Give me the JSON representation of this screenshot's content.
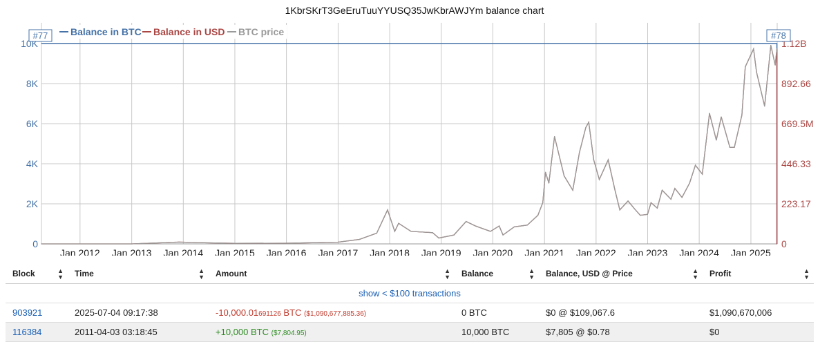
{
  "chart_data": {
    "type": "line",
    "title": "1KbrSKrT3GeEruTuuYYUSQ35JwKbrAWJYm balance chart",
    "legend": [
      "Balance in BTC",
      "Balance in USD",
      "BTC price"
    ],
    "legend_placement": "top-left",
    "grid": true,
    "x_ticks": [
      "Jan 2012",
      "Jan 2013",
      "Jan 2014",
      "Jan 2015",
      "Jan 2016",
      "Jan 2017",
      "Jan 2018",
      "Jan 2019",
      "Jan 2020",
      "Jan 2021",
      "Jan 2022",
      "Jan 2023",
      "Jan 2024",
      "Jan 2025"
    ],
    "y_left_ticks": [
      "0",
      "2K",
      "4K",
      "6K",
      "8K",
      "10K"
    ],
    "y_right_ticks": [
      "0",
      "223.17",
      "446.33",
      "669.5M",
      "892.66",
      "1.12B"
    ],
    "y_left_range": [
      0,
      10000
    ],
    "y_right_range_usd_millions": [
      0,
      1120
    ],
    "flags": [
      "#77",
      "#78"
    ],
    "series": [
      {
        "name": "Balance in BTC",
        "color": "#4572a7",
        "points": [
          [
            "2011-04-03",
            10000
          ],
          [
            "2025-07-04",
            10000
          ],
          [
            "2025-07-04",
            0
          ]
        ]
      },
      {
        "name": "Balance in USD",
        "color": "#aa4643",
        "unit": "USD millions",
        "points": [
          [
            "2011-04-03",
            0.008
          ],
          [
            "2013-01-01",
            0.13
          ],
          [
            "2013-12-01",
            10
          ],
          [
            "2014-06-01",
            6
          ],
          [
            "2015-01-01",
            3
          ],
          [
            "2016-01-01",
            4
          ],
          [
            "2016-07-01",
            6.5
          ],
          [
            "2017-01-01",
            9.5
          ],
          [
            "2017-06-01",
            25
          ],
          [
            "2017-10-01",
            60
          ],
          [
            "2017-12-17",
            190
          ],
          [
            "2018-02-06",
            70
          ],
          [
            "2018-03-05",
            115
          ],
          [
            "2018-06-01",
            70
          ],
          [
            "2018-11-01",
            63
          ],
          [
            "2018-12-15",
            33
          ],
          [
            "2019-04-01",
            50
          ],
          [
            "2019-06-26",
            125
          ],
          [
            "2019-09-01",
            100
          ],
          [
            "2019-12-15",
            70
          ],
          [
            "2020-02-15",
            100
          ],
          [
            "2020-03-13",
            50
          ],
          [
            "2020-06-01",
            95
          ],
          [
            "2020-09-01",
            105
          ],
          [
            "2020-11-15",
            160
          ],
          [
            "2020-12-20",
            230
          ],
          [
            "2021-01-08",
            400
          ],
          [
            "2021-02-01",
            340
          ],
          [
            "2021-03-13",
            600
          ],
          [
            "2021-05-20",
            380
          ],
          [
            "2021-07-20",
            300
          ],
          [
            "2021-09-05",
            510
          ],
          [
            "2021-10-20",
            650
          ],
          [
            "2021-11-10",
            680
          ],
          [
            "2021-12-15",
            470
          ],
          [
            "2022-01-24",
            360
          ],
          [
            "2022-03-28",
            470
          ],
          [
            "2022-05-15",
            300
          ],
          [
            "2022-06-18",
            190
          ],
          [
            "2022-08-15",
            240
          ],
          [
            "2022-10-01",
            195
          ],
          [
            "2022-11-10",
            160
          ],
          [
            "2022-12-31",
            165
          ],
          [
            "2023-01-25",
            230
          ],
          [
            "2023-03-10",
            200
          ],
          [
            "2023-04-14",
            300
          ],
          [
            "2023-06-15",
            250
          ],
          [
            "2023-07-13",
            310
          ],
          [
            "2023-09-01",
            260
          ],
          [
            "2023-10-25",
            340
          ],
          [
            "2023-12-05",
            440
          ],
          [
            "2024-01-23",
            390
          ],
          [
            "2024-03-14",
            730
          ],
          [
            "2024-05-01",
            580
          ],
          [
            "2024-06-05",
            710
          ],
          [
            "2024-08-05",
            540
          ],
          [
            "2024-09-06",
            540
          ],
          [
            "2024-10-29",
            720
          ],
          [
            "2024-11-22",
            990
          ],
          [
            "2025-01-20",
            1090
          ],
          [
            "2025-02-10",
            960
          ],
          [
            "2025-04-08",
            770
          ],
          [
            "2025-05-22",
            1110
          ],
          [
            "2025-06-22",
            1000
          ],
          [
            "2025-07-04",
            1090
          ],
          [
            "2025-07-04",
            0
          ]
        ]
      },
      {
        "name": "BTC price",
        "color": "#999999",
        "unit": "USD",
        "points": [
          [
            "2011-04-03",
            0.78
          ],
          [
            "2013-01-01",
            13
          ],
          [
            "2013-12-01",
            1000
          ],
          [
            "2014-06-01",
            600
          ],
          [
            "2015-01-01",
            300
          ],
          [
            "2016-01-01",
            400
          ],
          [
            "2016-07-01",
            650
          ],
          [
            "2017-01-01",
            950
          ],
          [
            "2017-06-01",
            2500
          ],
          [
            "2017-10-01",
            6000
          ],
          [
            "2017-12-17",
            19000
          ],
          [
            "2018-02-06",
            7000
          ],
          [
            "2018-03-05",
            11500
          ],
          [
            "2018-06-01",
            7000
          ],
          [
            "2018-11-01",
            6300
          ],
          [
            "2018-12-15",
            3300
          ],
          [
            "2019-04-01",
            5000
          ],
          [
            "2019-06-26",
            12500
          ],
          [
            "2019-09-01",
            10000
          ],
          [
            "2019-12-15",
            7000
          ],
          [
            "2020-02-15",
            10000
          ],
          [
            "2020-03-13",
            5000
          ],
          [
            "2020-06-01",
            9500
          ],
          [
            "2020-09-01",
            10500
          ],
          [
            "2020-11-15",
            16000
          ],
          [
            "2020-12-20",
            23000
          ],
          [
            "2021-01-08",
            40000
          ],
          [
            "2021-02-01",
            34000
          ],
          [
            "2021-03-13",
            60000
          ],
          [
            "2021-05-20",
            38000
          ],
          [
            "2021-07-20",
            30000
          ],
          [
            "2021-09-05",
            51000
          ],
          [
            "2021-10-20",
            65000
          ],
          [
            "2021-11-10",
            68000
          ],
          [
            "2021-12-15",
            47000
          ],
          [
            "2022-01-24",
            36000
          ],
          [
            "2022-03-28",
            47000
          ],
          [
            "2022-05-15",
            30000
          ],
          [
            "2022-06-18",
            19000
          ],
          [
            "2022-08-15",
            24000
          ],
          [
            "2022-10-01",
            19500
          ],
          [
            "2022-11-10",
            16000
          ],
          [
            "2022-12-31",
            16500
          ],
          [
            "2023-01-25",
            23000
          ],
          [
            "2023-03-10",
            20000
          ],
          [
            "2023-04-14",
            30000
          ],
          [
            "2023-06-15",
            25000
          ],
          [
            "2023-07-13",
            31000
          ],
          [
            "2023-09-01",
            26000
          ],
          [
            "2023-10-25",
            34000
          ],
          [
            "2023-12-05",
            44000
          ],
          [
            "2024-01-23",
            39000
          ],
          [
            "2024-03-14",
            73000
          ],
          [
            "2024-05-01",
            58000
          ],
          [
            "2024-06-05",
            71000
          ],
          [
            "2024-08-05",
            54000
          ],
          [
            "2024-09-06",
            54000
          ],
          [
            "2024-10-29",
            72000
          ],
          [
            "2024-11-22",
            99000
          ],
          [
            "2025-01-20",
            109000
          ],
          [
            "2025-02-10",
            96000
          ],
          [
            "2025-04-08",
            77000
          ],
          [
            "2025-05-22",
            111000
          ],
          [
            "2025-06-22",
            100000
          ],
          [
            "2025-07-04",
            109067.6
          ]
        ]
      }
    ]
  },
  "table": {
    "headers": [
      "Block",
      "Time",
      "Amount",
      "Balance",
      "Balance, USD @ Price",
      "Profit"
    ],
    "show_small_label": "show < $100 transactions",
    "rows": [
      {
        "block": "903921",
        "time": "2025-07-04 09:17:38",
        "amount_main": "-10,000.01",
        "amount_tail": "691126",
        "amount_unit": " BTC",
        "amount_usd": "($1,090,677,885.36)",
        "balance": "0 BTC",
        "balance_usd": "$0 @ $109,067.6",
        "profit": "$1,090,670,006"
      },
      {
        "block": "116384",
        "time": "2011-04-03 03:18:45",
        "amount_main": "+10,000",
        "amount_tail": "",
        "amount_unit": " BTC",
        "amount_usd": "($7,804.95)",
        "balance": "10,000 BTC",
        "balance_usd": "$7,805 @ $0.78",
        "profit": "$0"
      }
    ]
  }
}
